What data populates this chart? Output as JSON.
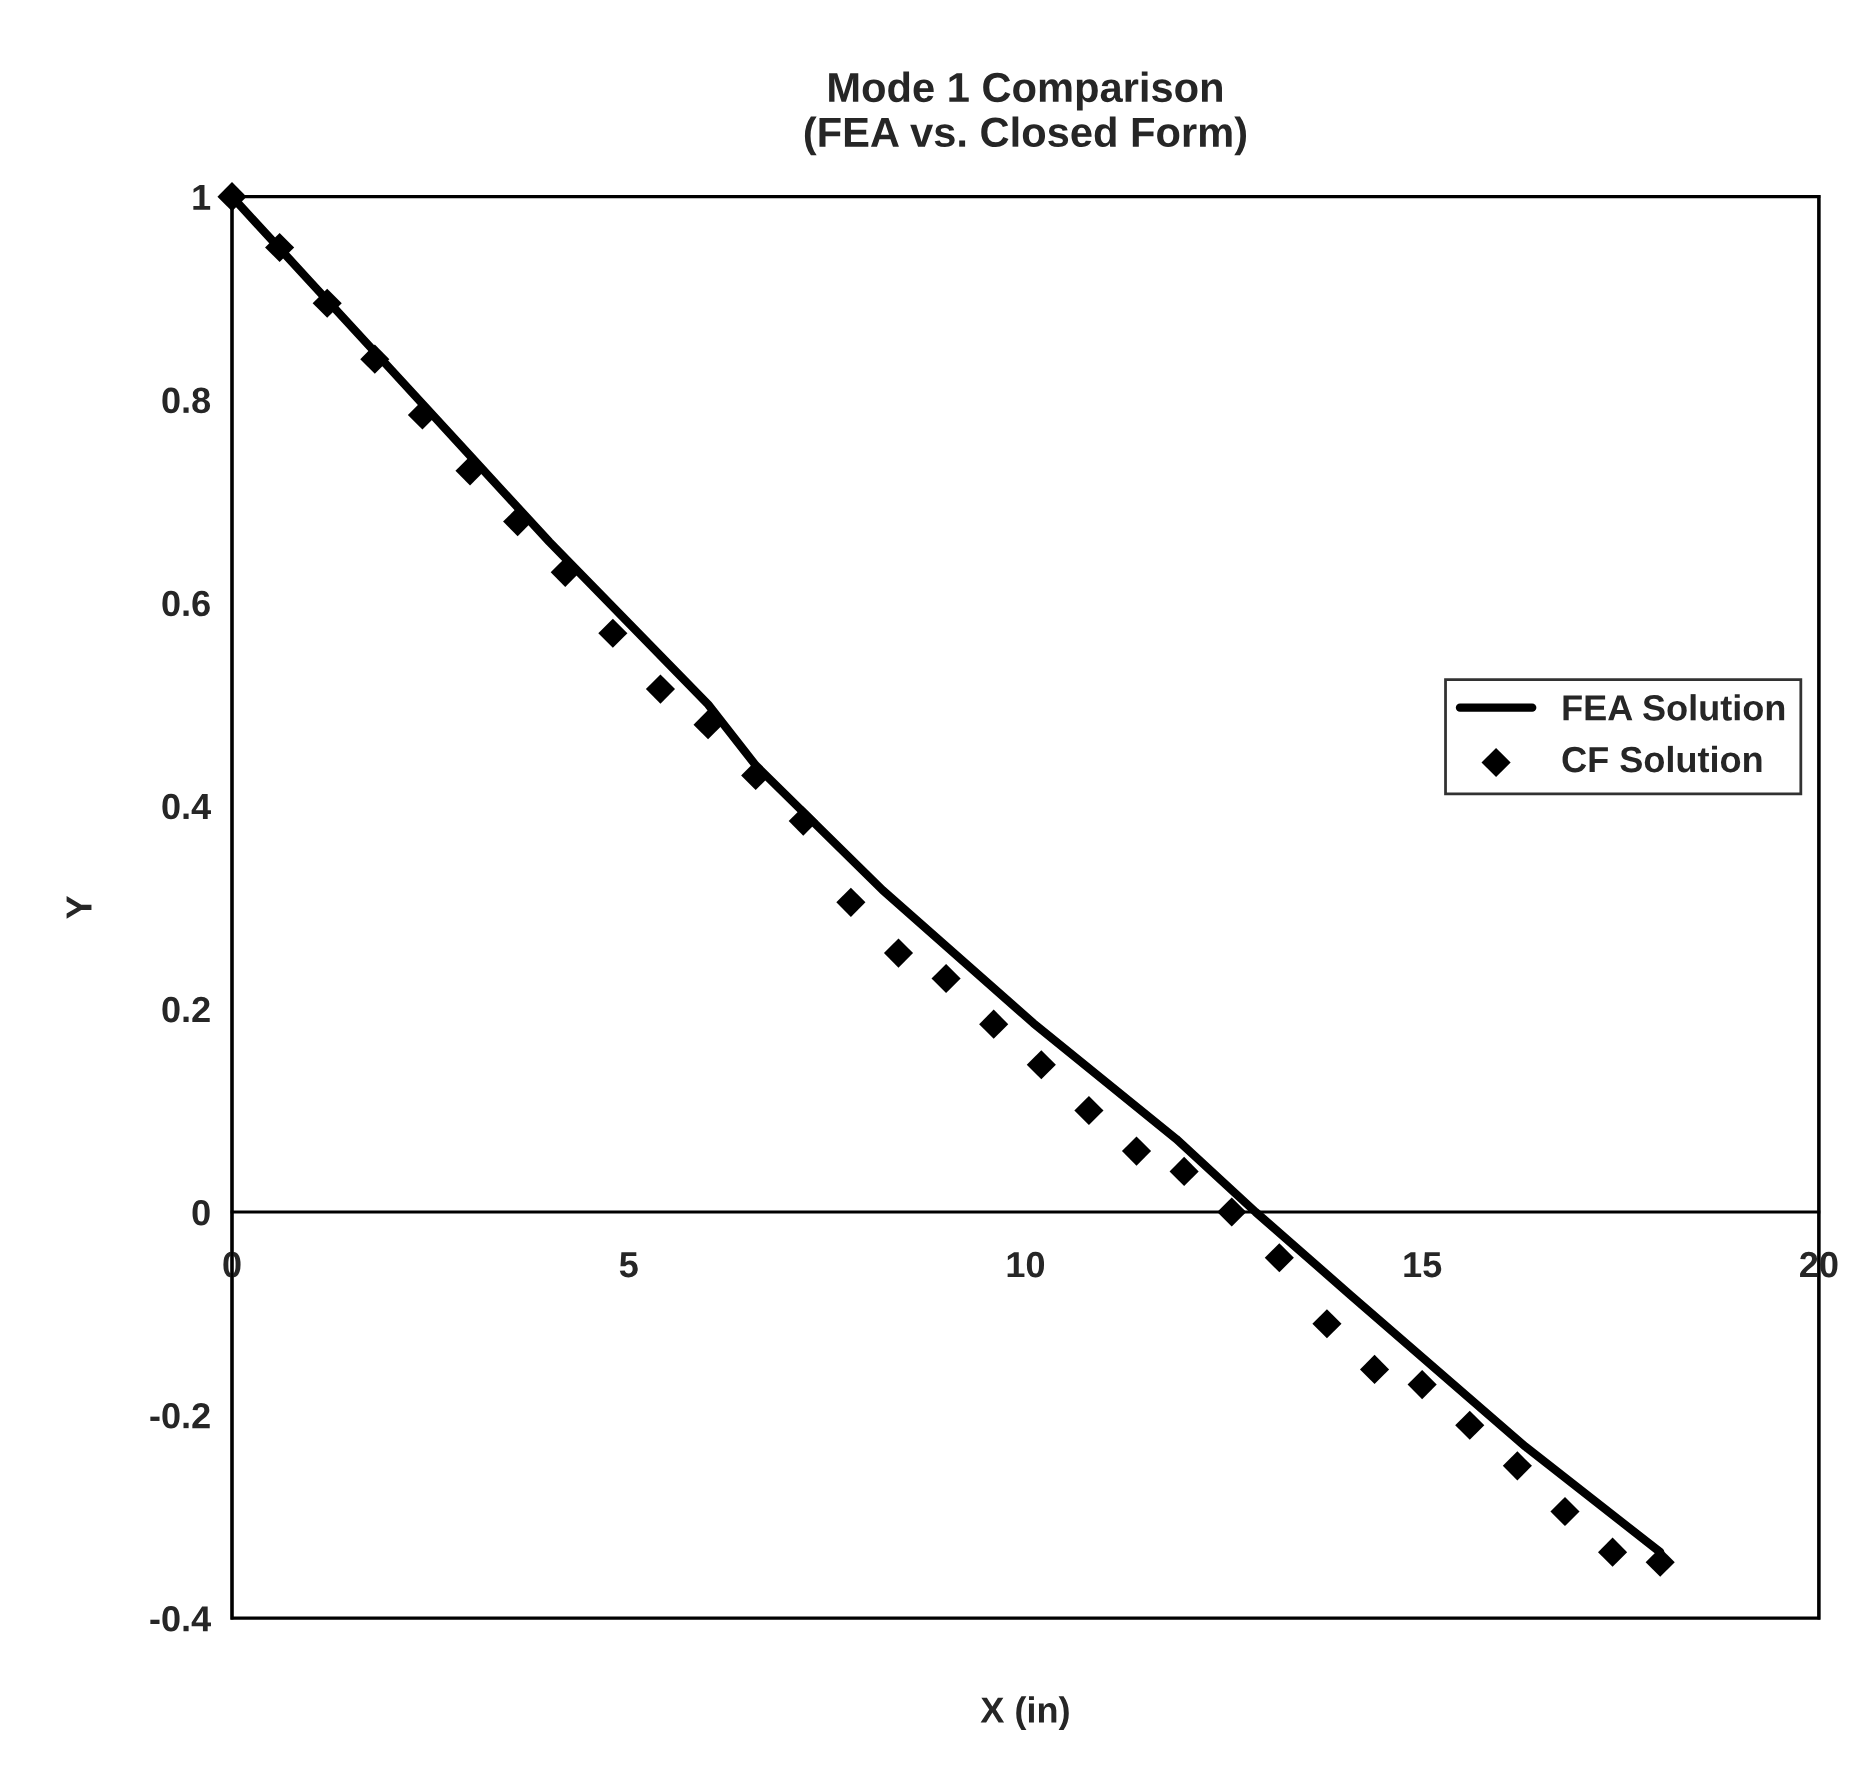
{
  "chart_data": {
    "type": "line",
    "title": "Mode 1 Comparison\n(FEA vs. Closed Form)",
    "xlabel": "X (in)",
    "ylabel": "Y",
    "xlim": [
      0,
      20
    ],
    "xticks": [
      0,
      5,
      10,
      15,
      20
    ],
    "ylim": [
      -0.4,
      1
    ],
    "yticks": [
      -0.4,
      -0.2,
      0,
      0.2,
      0.4,
      0.6,
      0.8,
      1
    ],
    "grid": false,
    "legend": "right",
    "series": [
      {
        "name": "FEA Solution",
        "color": "#000000",
        "marker": "none",
        "line_style": "solid",
        "x": [
          0,
          1,
          2,
          3,
          4,
          5,
          6,
          6.6,
          8.2,
          10.1,
          11.9,
          12.9,
          14.1,
          16.3,
          18
        ],
        "values": [
          1,
          0.915,
          0.83,
          0.745,
          0.66,
          0.58,
          0.5,
          0.44,
          0.317,
          0.186,
          0.072,
          0,
          -0.082,
          -0.231,
          -0.335
        ]
      },
      {
        "name": "CF Solution",
        "type": "scatter",
        "color": "#000000",
        "marker": "diamond",
        "x": [
          0,
          0.6,
          1.2,
          1.8,
          2.4,
          3,
          3.6,
          4.2,
          4.8,
          5.4,
          6,
          6.6,
          7.2,
          7.8,
          8.4,
          9,
          9.6,
          10.2,
          10.8,
          11.4,
          12,
          12.6,
          13.2,
          13.8,
          14.4,
          15,
          15.6,
          16.2,
          16.8,
          17.4,
          18
        ],
        "values": [
          1.0,
          0.95,
          0.895,
          0.84,
          0.785,
          0.73,
          0.68,
          0.63,
          0.57,
          0.515,
          0.48,
          0.43,
          0.385,
          0.305,
          0.255,
          0.23,
          0.185,
          0.145,
          0.1,
          0.06,
          0.04,
          0.0,
          -0.045,
          -0.11,
          -0.155,
          -0.17,
          -0.21,
          -0.25,
          -0.295,
          -0.335,
          -0.345
        ]
      }
    ]
  }
}
